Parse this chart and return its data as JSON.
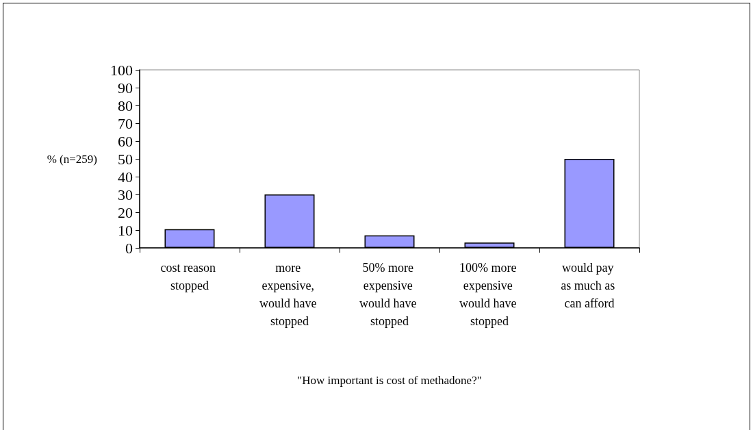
{
  "chart_data": {
    "type": "bar",
    "xlabel": "\"How important is cost of methadone?\"",
    "ylabel": "% (n=259)",
    "categories": [
      "cost reason stopped",
      "more expensive, would have stopped",
      "50% more expensive would have stopped",
      "100% more expensive would have stopped",
      "would pay as much as can afford"
    ],
    "values": [
      10.5,
      30,
      7,
      3,
      50
    ],
    "color": "#9999ff",
    "ylim": [
      0,
      100
    ],
    "yticks": [
      0,
      10,
      20,
      30,
      40,
      50,
      60,
      70,
      80,
      90,
      100
    ],
    "grid": false
  }
}
